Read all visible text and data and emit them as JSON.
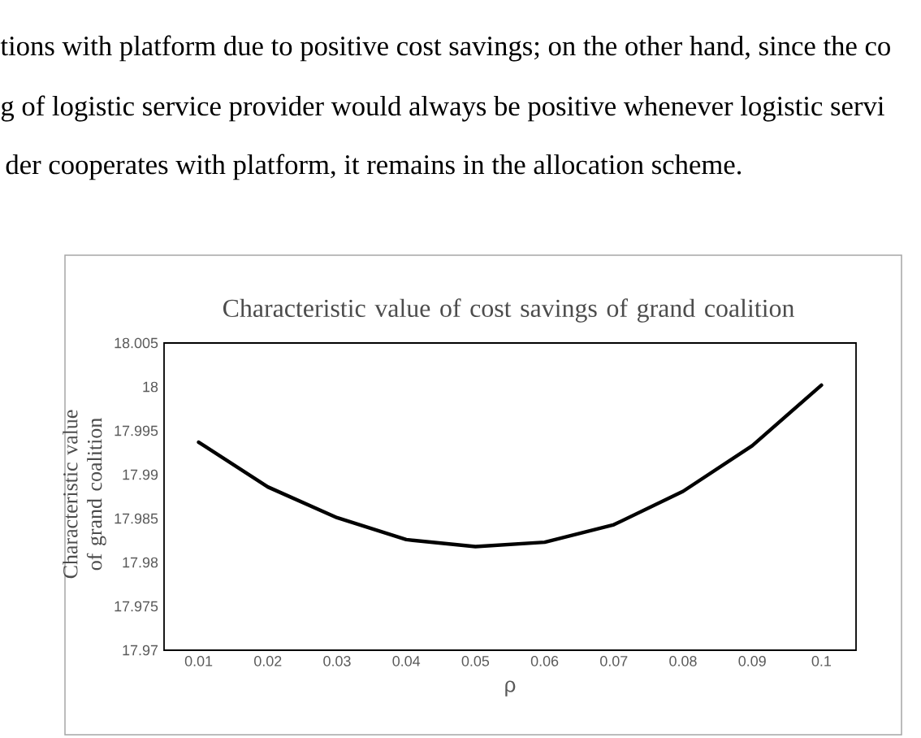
{
  "chart_data": {
    "type": "line",
    "title": "Characteristic value of cost savings of grand coalition",
    "xlabel": "ρ",
    "ylabel": "Characteristic value of  grand coalition",
    "annotations": [
      "tions with platform due to positive cost savings; on the other hand, since the co",
      "g of logistic service provider would always be positive whenever logistic servi",
      "der cooperates with platform, it remains in the allocation scheme."
    ],
    "categories": [
      "0.01",
      "0.02",
      "0.03",
      "0.04",
      "0.05",
      "0.06",
      "0.07",
      "0.08",
      "0.09",
      "0.1"
    ],
    "series": [
      {
        "color": "#000000",
        "values": [
          17.9937,
          17.9886,
          17.9851,
          17.9826,
          17.9818,
          17.9823,
          17.9843,
          17.9881,
          17.9933,
          18.0002
        ]
      }
    ],
    "ylim": [
      17.97,
      18.005
    ],
    "yticks": [
      17.97,
      17.975,
      17.98,
      17.985,
      17.99,
      17.995,
      18,
      18.005
    ],
    "grid": false,
    "marker": "none",
    "line_style": "solid"
  }
}
